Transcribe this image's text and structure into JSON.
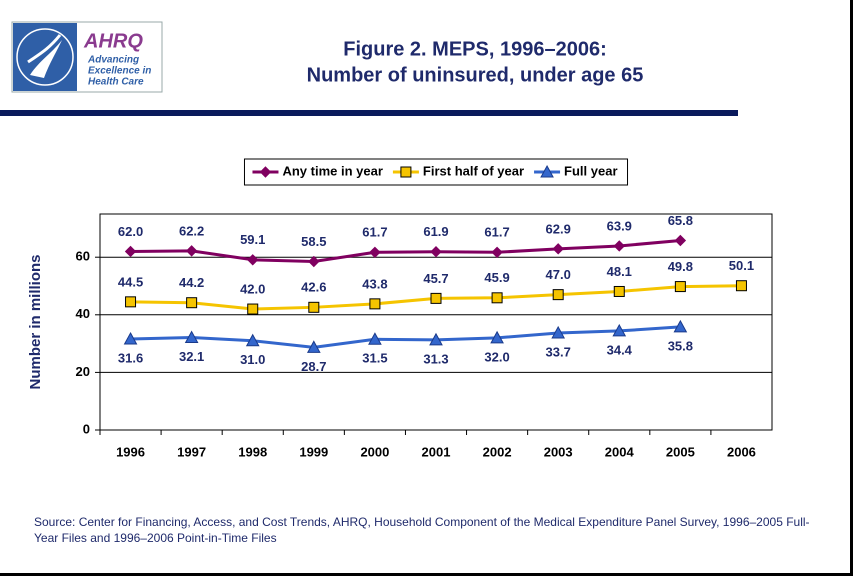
{
  "logo": {
    "name": "AHRQ",
    "lines": [
      "Advancing",
      "Excellence in",
      "Health Care"
    ]
  },
  "chart_data": {
    "type": "line",
    "title": [
      "Figure 2. MEPS, 1996–2006:",
      "Number of uninsured, under age 65"
    ],
    "y_label": "Number in millions",
    "categories": [
      "1996",
      "1997",
      "1998",
      "1999",
      "2000",
      "2001",
      "2002",
      "2003",
      "2004",
      "2005",
      "2006"
    ],
    "series": [
      {
        "name": "Any time in year",
        "color": "#800060",
        "marker": "diamond",
        "values": [
          62.0,
          62.2,
          59.1,
          58.5,
          61.7,
          61.9,
          61.7,
          62.9,
          63.9,
          65.8,
          null
        ],
        "value_labels": [
          "62.0",
          "62.2",
          "59.1",
          "58.5",
          "61.7",
          "61.9",
          "61.7",
          "62.9",
          "63.9",
          "65.8",
          null
        ]
      },
      {
        "name": "First half of year",
        "color": "#f5c400",
        "marker": "square",
        "values": [
          44.5,
          44.2,
          42.0,
          42.6,
          43.8,
          45.7,
          45.9,
          47.0,
          48.1,
          49.8,
          50.1
        ],
        "value_labels": [
          "44.5",
          "44.2",
          "42.0",
          "42.6",
          "43.8",
          "45.7",
          "45.9",
          "47.0",
          "48.1",
          "49.8",
          "50.1"
        ]
      },
      {
        "name": "Full year",
        "color": "#3366cc",
        "marker": "triangle",
        "values": [
          31.6,
          32.1,
          31.0,
          28.7,
          31.5,
          31.3,
          32.0,
          33.7,
          34.4,
          35.8,
          null
        ],
        "value_labels": [
          "31.6",
          "32.1",
          "31.0",
          "28.7",
          "31.5",
          "31.3",
          "32.0",
          "33.7",
          "34.4",
          "35.8",
          null
        ]
      }
    ],
    "ylim": [
      0,
      75
    ],
    "yticks": [
      0,
      20,
      40,
      60
    ],
    "grid": true,
    "legend": "top",
    "source": "Source: Center for Financing, Access, and Cost Trends, AHRQ, Household Component of the Medical Expenditure Panel Survey, 1996–2005 Full-Year Files and 1996–2006 Point-in-Time Files"
  }
}
